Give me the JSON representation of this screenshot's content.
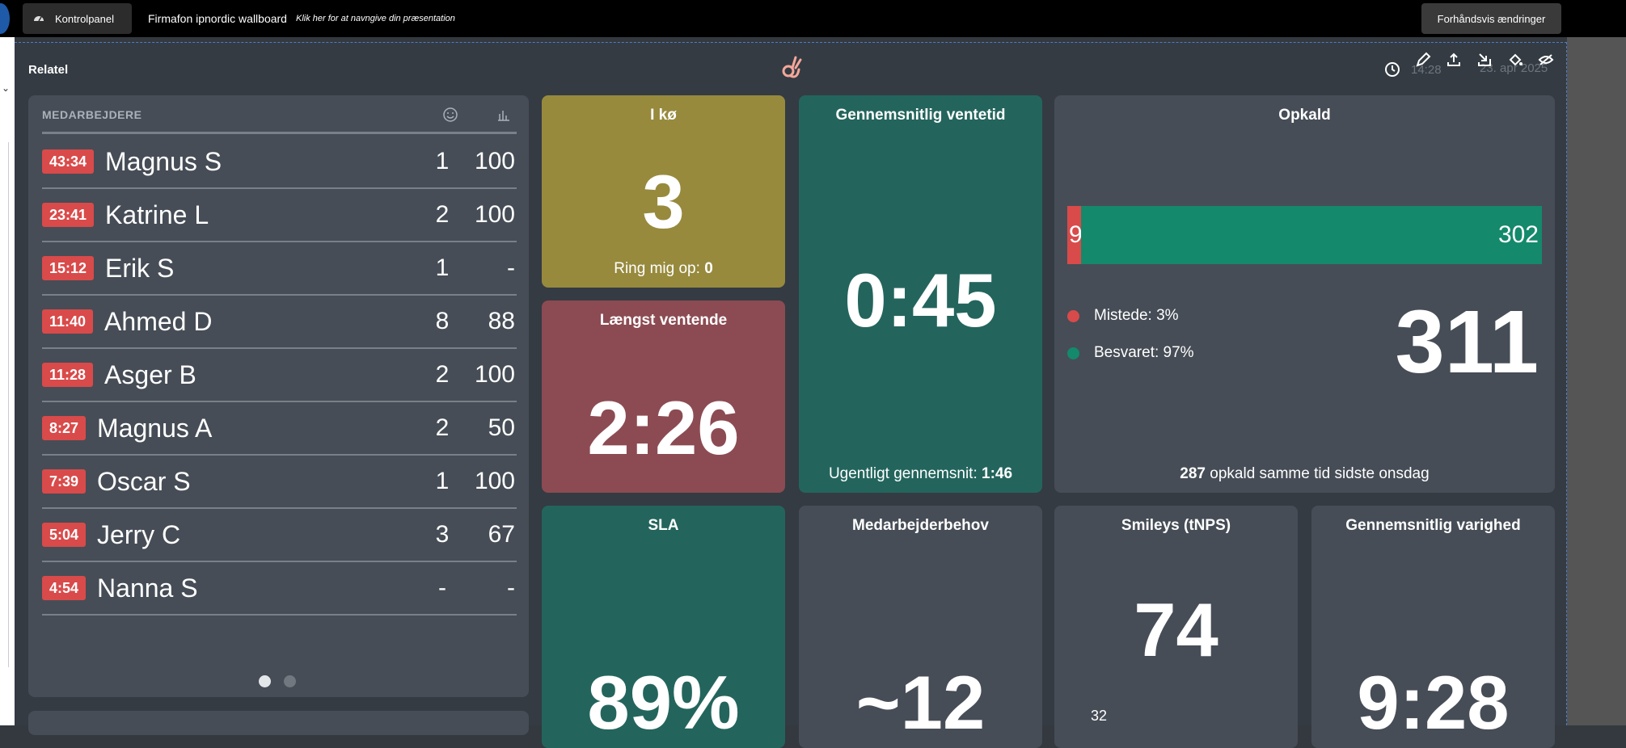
{
  "topbar": {
    "control_panel_label": "Kontrolpanel",
    "presentation_title": "Firmafon ipnordic wallboard",
    "presentation_hint": "Klik her for at navngive din præsentation",
    "preview_label": "Forhåndsvis ændringer"
  },
  "header": {
    "brand": "Relatel",
    "time": "14:28",
    "date": "23. apr 2025"
  },
  "employees": {
    "title": "MEDARBEJDERE",
    "rows": [
      {
        "time": "43:34",
        "name": "Magnus S",
        "a": "1",
        "b": "100"
      },
      {
        "time": "23:41",
        "name": "Katrine L",
        "a": "2",
        "b": "100"
      },
      {
        "time": "15:12",
        "name": "Erik S",
        "a": "1",
        "b": "-"
      },
      {
        "time": "11:40",
        "name": "Ahmed D",
        "a": "8",
        "b": "88"
      },
      {
        "time": "11:28",
        "name": "Asger B",
        "a": "2",
        "b": "100"
      },
      {
        "time": "8:27",
        "name": "Magnus A",
        "a": "2",
        "b": "50"
      },
      {
        "time": "7:39",
        "name": "Oscar S",
        "a": "1",
        "b": "100"
      },
      {
        "time": "5:04",
        "name": "Jerry C",
        "a": "3",
        "b": "67"
      },
      {
        "time": "4:54",
        "name": "Nanna S",
        "a": "-",
        "b": "-"
      }
    ]
  },
  "queue": {
    "title": "I kø",
    "value": "3",
    "callback_label": "Ring mig op:",
    "callback_value": "0"
  },
  "longest": {
    "title": "Længst ventende",
    "value": "2:26"
  },
  "avg_wait": {
    "title": "Gennemsnitlig ventetid",
    "value": "0:45",
    "weekly_label": "Ugentligt gennemsnit:",
    "weekly_value": "1:46"
  },
  "calls": {
    "title": "Opkald",
    "missed_count": "9",
    "answered_count": "302",
    "missed_fraction": 0.029,
    "missed_label": "Mistede: 3%",
    "answered_label": "Besvaret: 97%",
    "total": "311",
    "compare_value": "287",
    "compare_text": "opkald samme tid sidste onsdag",
    "colors": {
      "missed": "#d94a4a",
      "answered": "#14896b"
    }
  },
  "sla": {
    "title": "SLA",
    "value": "89%"
  },
  "staff_need": {
    "title": "Medarbejderbehov",
    "value": "~12"
  },
  "smileys": {
    "title": "Smileys (tNPS)",
    "value": "74",
    "sub": "32"
  },
  "avg_duration": {
    "title": "Gennemsnitlig varighed",
    "value": "9:28"
  }
}
